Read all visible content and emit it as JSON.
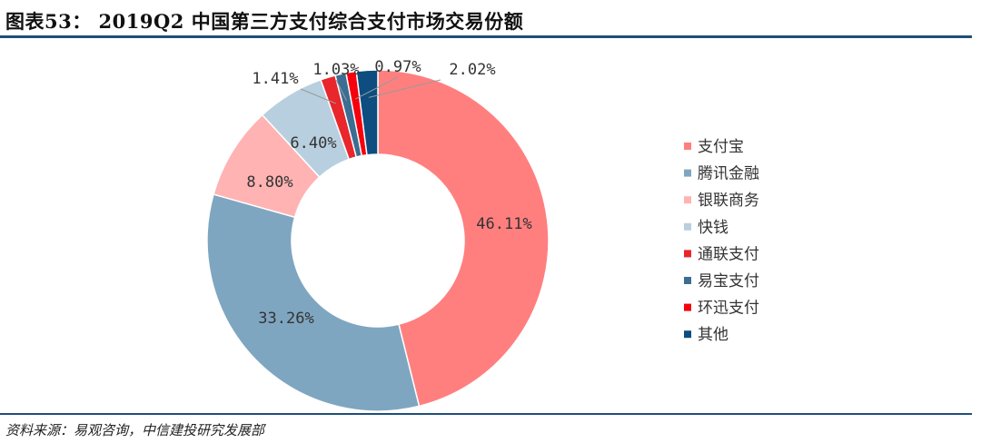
{
  "header": {
    "title": "图表53： 2019Q2 中国第三方支付综合支付市场交易份额"
  },
  "footer": {
    "source": "资料来源：易观咨询，中信建投研究发展部"
  },
  "chart_data": {
    "type": "pie",
    "donut": true,
    "legend_position": "right",
    "series": [
      {
        "name": "支付宝",
        "value": 46.11,
        "label": "46.11%",
        "color": "#ff7f7f"
      },
      {
        "name": "腾讯金融",
        "value": 33.26,
        "label": "33.26%",
        "color": "#7fa6c0"
      },
      {
        "name": "银联商务",
        "value": 8.8,
        "label": "8.80%",
        "color": "#ffb3b3"
      },
      {
        "name": "快钱",
        "value": 6.4,
        "label": "6.40%",
        "color": "#b8cfdf"
      },
      {
        "name": "通联支付",
        "value": 1.41,
        "label": "1.41%",
        "color": "#e8262b"
      },
      {
        "name": "易宝支付",
        "value": 1.03,
        "label": "1.03%",
        "color": "#3c6d93"
      },
      {
        "name": "环迅支付",
        "value": 0.97,
        "label": "0.97%",
        "color": "#f5000c"
      },
      {
        "name": "其他",
        "value": 2.02,
        "label": "2.02%",
        "color": "#0d4d80"
      }
    ]
  }
}
